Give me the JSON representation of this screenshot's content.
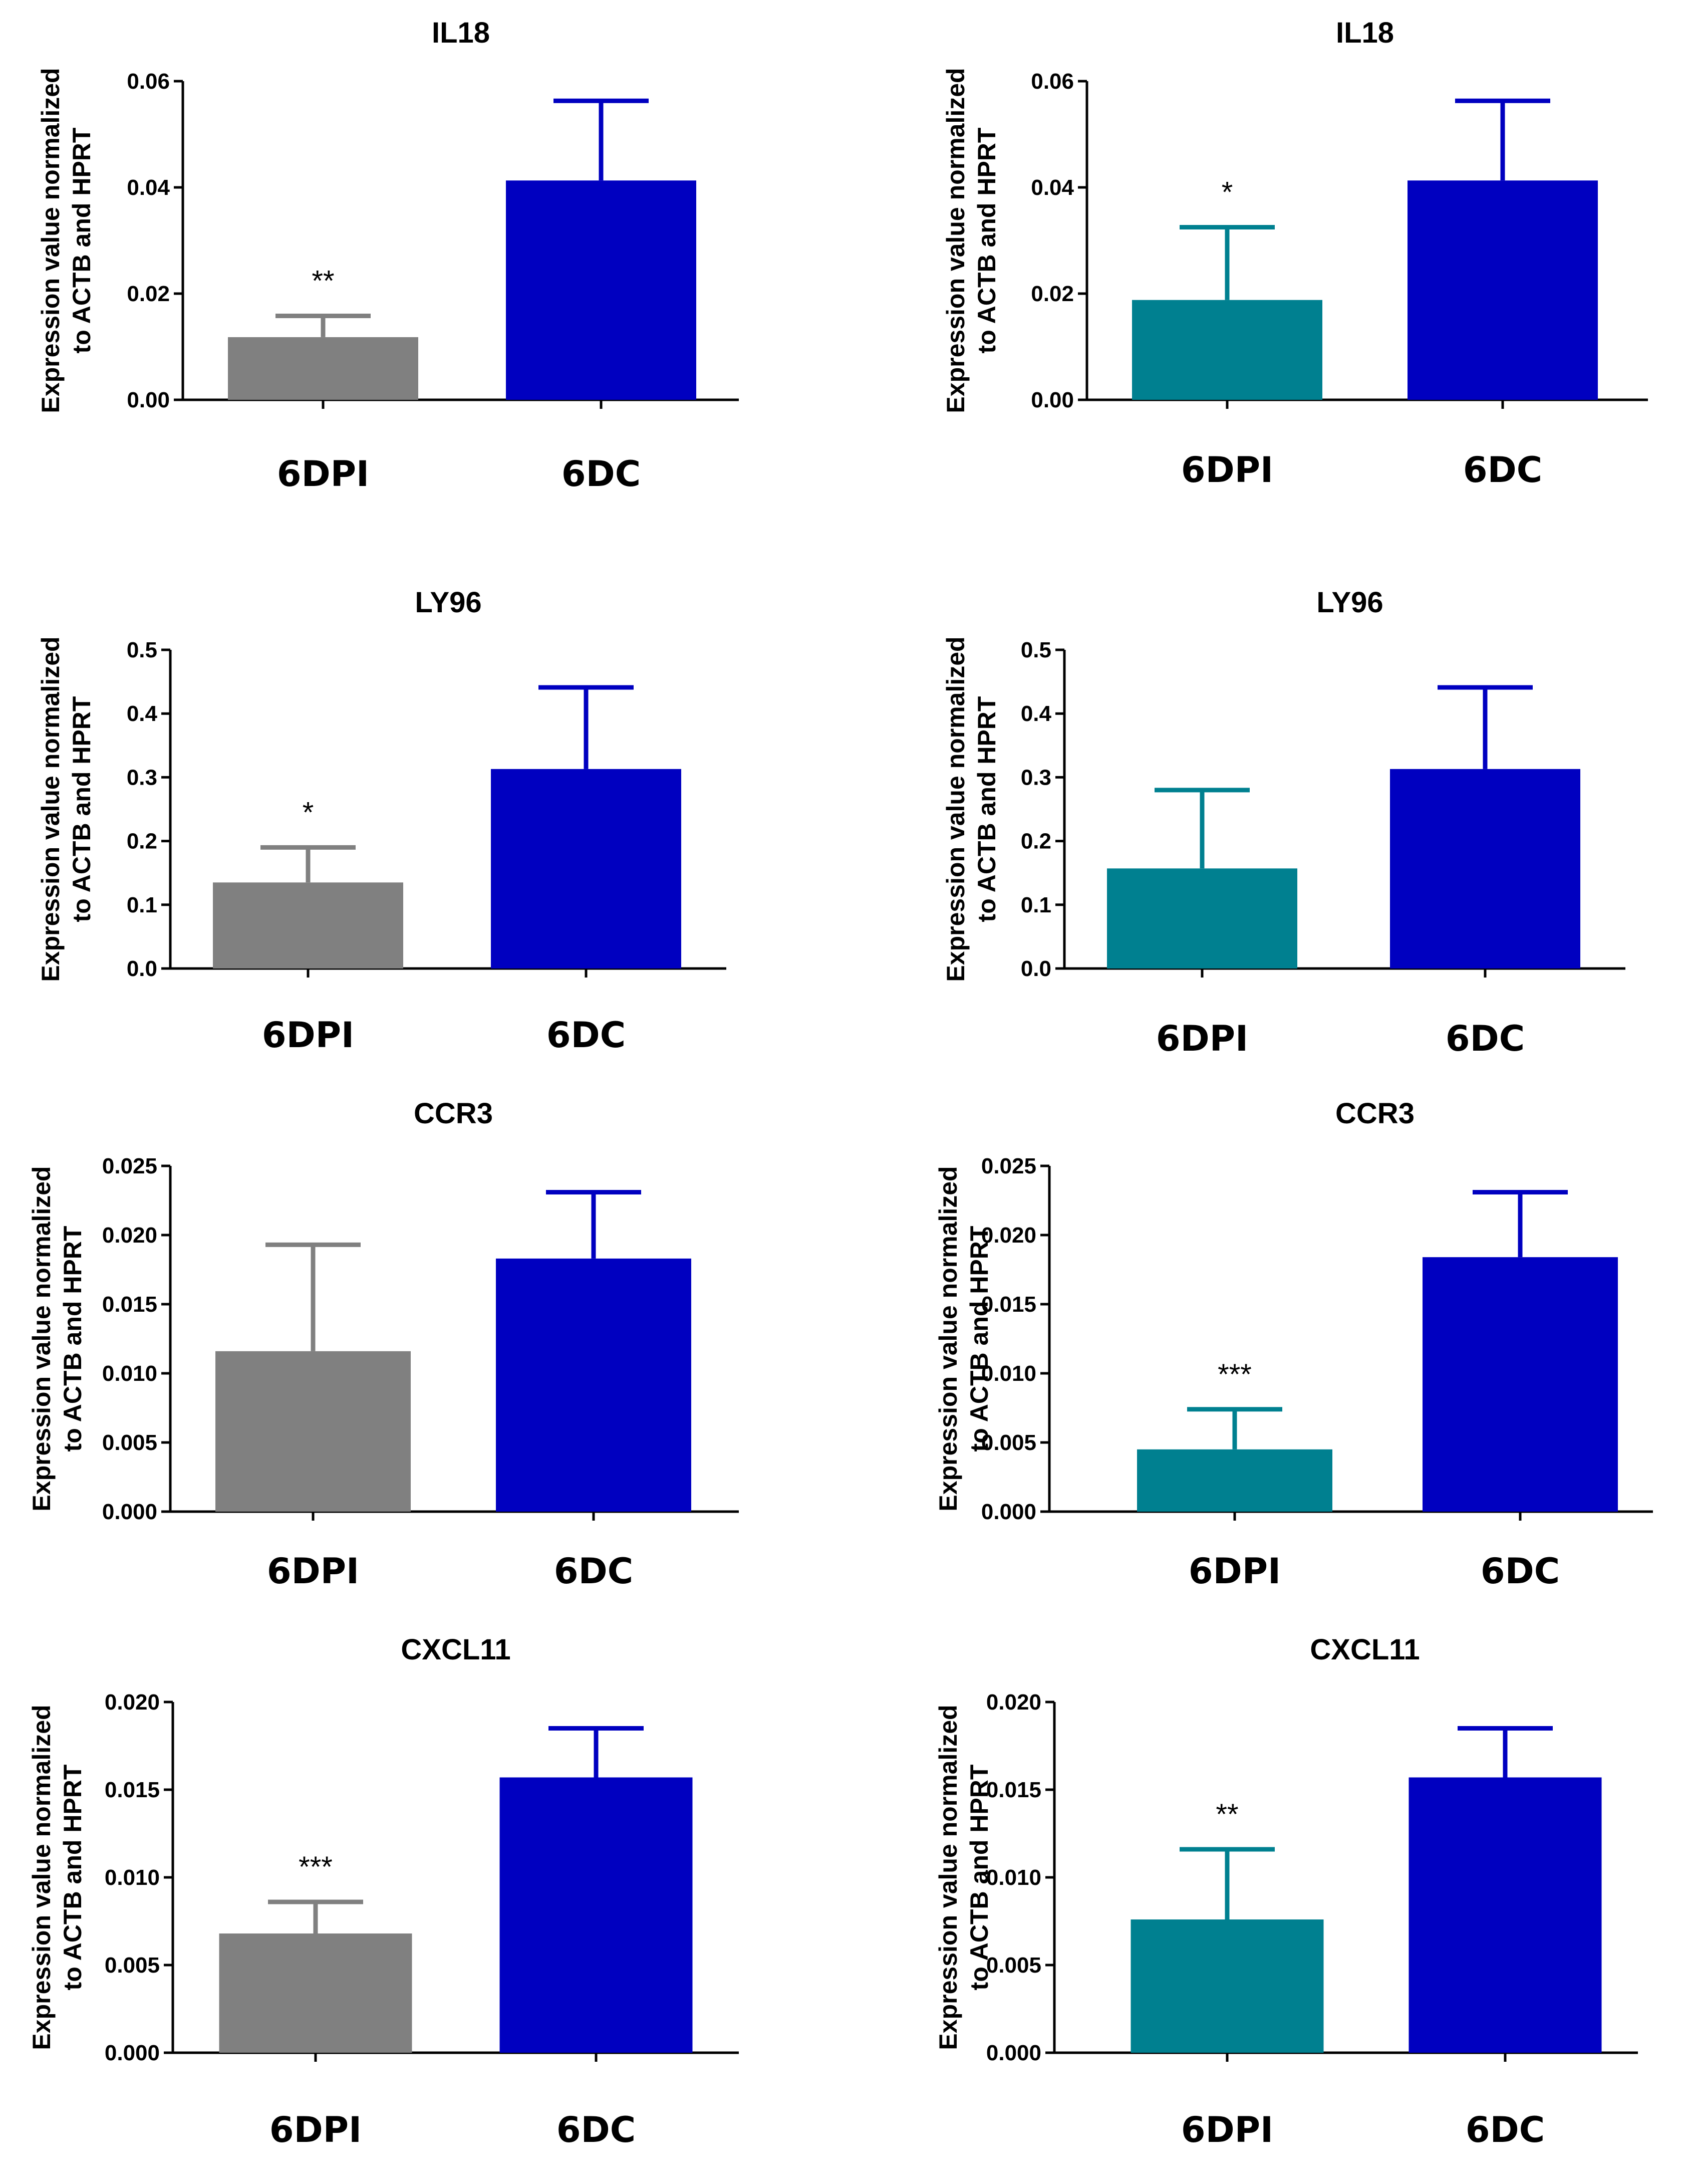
{
  "colors": {
    "dpi_gray": "#808080",
    "dpi_teal": "#008090",
    "dc_blue": "#0000C0"
  },
  "chart_data": [
    {
      "type": "bar",
      "title": "IL18",
      "ylabel": [
        "Expression value normalized",
        "to ACTB and HPRT"
      ],
      "categories": [
        "6DPI",
        "6DC"
      ],
      "values": [
        0.0118,
        0.0413
      ],
      "errors": [
        0.004,
        0.015
      ],
      "significance": [
        "**",
        ""
      ],
      "ylim": [
        0,
        0.06
      ],
      "yticks": [
        "0.00",
        "0.02",
        "0.04",
        "0.06"
      ],
      "bar_colors": [
        "dpi_gray",
        "dc_blue"
      ]
    },
    {
      "type": "bar",
      "title": "IL18",
      "ylabel": [
        "Expression value normalized",
        "to ACTB and HPRT"
      ],
      "categories": [
        "6DPI",
        "6DC"
      ],
      "values": [
        0.0188,
        0.0413
      ],
      "errors": [
        0.0137,
        0.015
      ],
      "significance": [
        "*",
        ""
      ],
      "ylim": [
        0,
        0.06
      ],
      "yticks": [
        "0.00",
        "0.02",
        "0.04",
        "0.06"
      ],
      "bar_colors": [
        "dpi_teal",
        "dc_blue"
      ]
    },
    {
      "type": "bar",
      "title": "LY96",
      "ylabel": [
        "Expression value normalized",
        "to ACTB and HPRT"
      ],
      "categories": [
        "6DPI",
        "6DC"
      ],
      "values": [
        0.135,
        0.313
      ],
      "errors": [
        0.055,
        0.128
      ],
      "significance": [
        "*",
        ""
      ],
      "ylim": [
        0,
        0.5
      ],
      "yticks": [
        "0.0",
        "0.1",
        "0.2",
        "0.3",
        "0.4",
        "0.5"
      ],
      "bar_colors": [
        "dpi_gray",
        "dc_blue"
      ]
    },
    {
      "type": "bar",
      "title": "LY96",
      "ylabel": [
        "Expression value normalized",
        "to ACTB and HPRT"
      ],
      "categories": [
        "6DPI",
        "6DC"
      ],
      "values": [
        0.157,
        0.313
      ],
      "errors": [
        0.123,
        0.128
      ],
      "significance": [
        "",
        ""
      ],
      "ylim": [
        0,
        0.5
      ],
      "yticks": [
        "0.0",
        "0.1",
        "0.2",
        "0.3",
        "0.4",
        "0.5"
      ],
      "bar_colors": [
        "dpi_teal",
        "dc_blue"
      ]
    },
    {
      "type": "bar",
      "title": "CCR3",
      "ylabel": [
        "Expression value normalized",
        "to ACTB and HPRT"
      ],
      "categories": [
        "6DPI",
        "6DC"
      ],
      "values": [
        0.0116,
        0.0183
      ],
      "errors": [
        0.0077,
        0.0048
      ],
      "significance": [
        "",
        ""
      ],
      "ylim": [
        0,
        0.025
      ],
      "yticks": [
        "0.000",
        "0.005",
        "0.010",
        "0.015",
        "0.020",
        "0.025"
      ],
      "bar_colors": [
        "dpi_gray",
        "dc_blue"
      ]
    },
    {
      "type": "bar",
      "title": "CCR3",
      "ylabel": [
        "Expression value normalized",
        "to ACTB and HPRT"
      ],
      "categories": [
        "6DPI",
        "6DC"
      ],
      "values": [
        0.0045,
        0.0184
      ],
      "errors": [
        0.0029,
        0.0047
      ],
      "significance": [
        "***",
        ""
      ],
      "ylim": [
        0,
        0.025
      ],
      "yticks": [
        "0.000",
        "0.005",
        "0.010",
        "0.015",
        "0.020",
        "0.025"
      ],
      "bar_colors": [
        "dpi_teal",
        "dc_blue"
      ]
    },
    {
      "type": "bar",
      "title": "CXCL11",
      "ylabel": [
        "Expression value normalized",
        "to ACTB and HPRT"
      ],
      "categories": [
        "6DPI",
        "6DC"
      ],
      "values": [
        0.0068,
        0.0157
      ],
      "errors": [
        0.0018,
        0.0028
      ],
      "significance": [
        "***",
        ""
      ],
      "ylim": [
        0,
        0.02
      ],
      "yticks": [
        "0.000",
        "0.005",
        "0.010",
        "0.015",
        "0.020"
      ],
      "bar_colors": [
        "dpi_gray",
        "dc_blue"
      ]
    },
    {
      "type": "bar",
      "title": "CXCL11",
      "ylabel": [
        "Expression value normalized",
        "to ACTB and HPRT"
      ],
      "categories": [
        "6DPI",
        "6DC"
      ],
      "values": [
        0.0076,
        0.0157
      ],
      "errors": [
        0.004,
        0.0028
      ],
      "significance": [
        "**",
        ""
      ],
      "ylim": [
        0,
        0.02
      ],
      "yticks": [
        "0.000",
        "0.005",
        "0.010",
        "0.015",
        "0.020"
      ],
      "bar_colors": [
        "dpi_teal",
        "dc_blue"
      ]
    }
  ]
}
